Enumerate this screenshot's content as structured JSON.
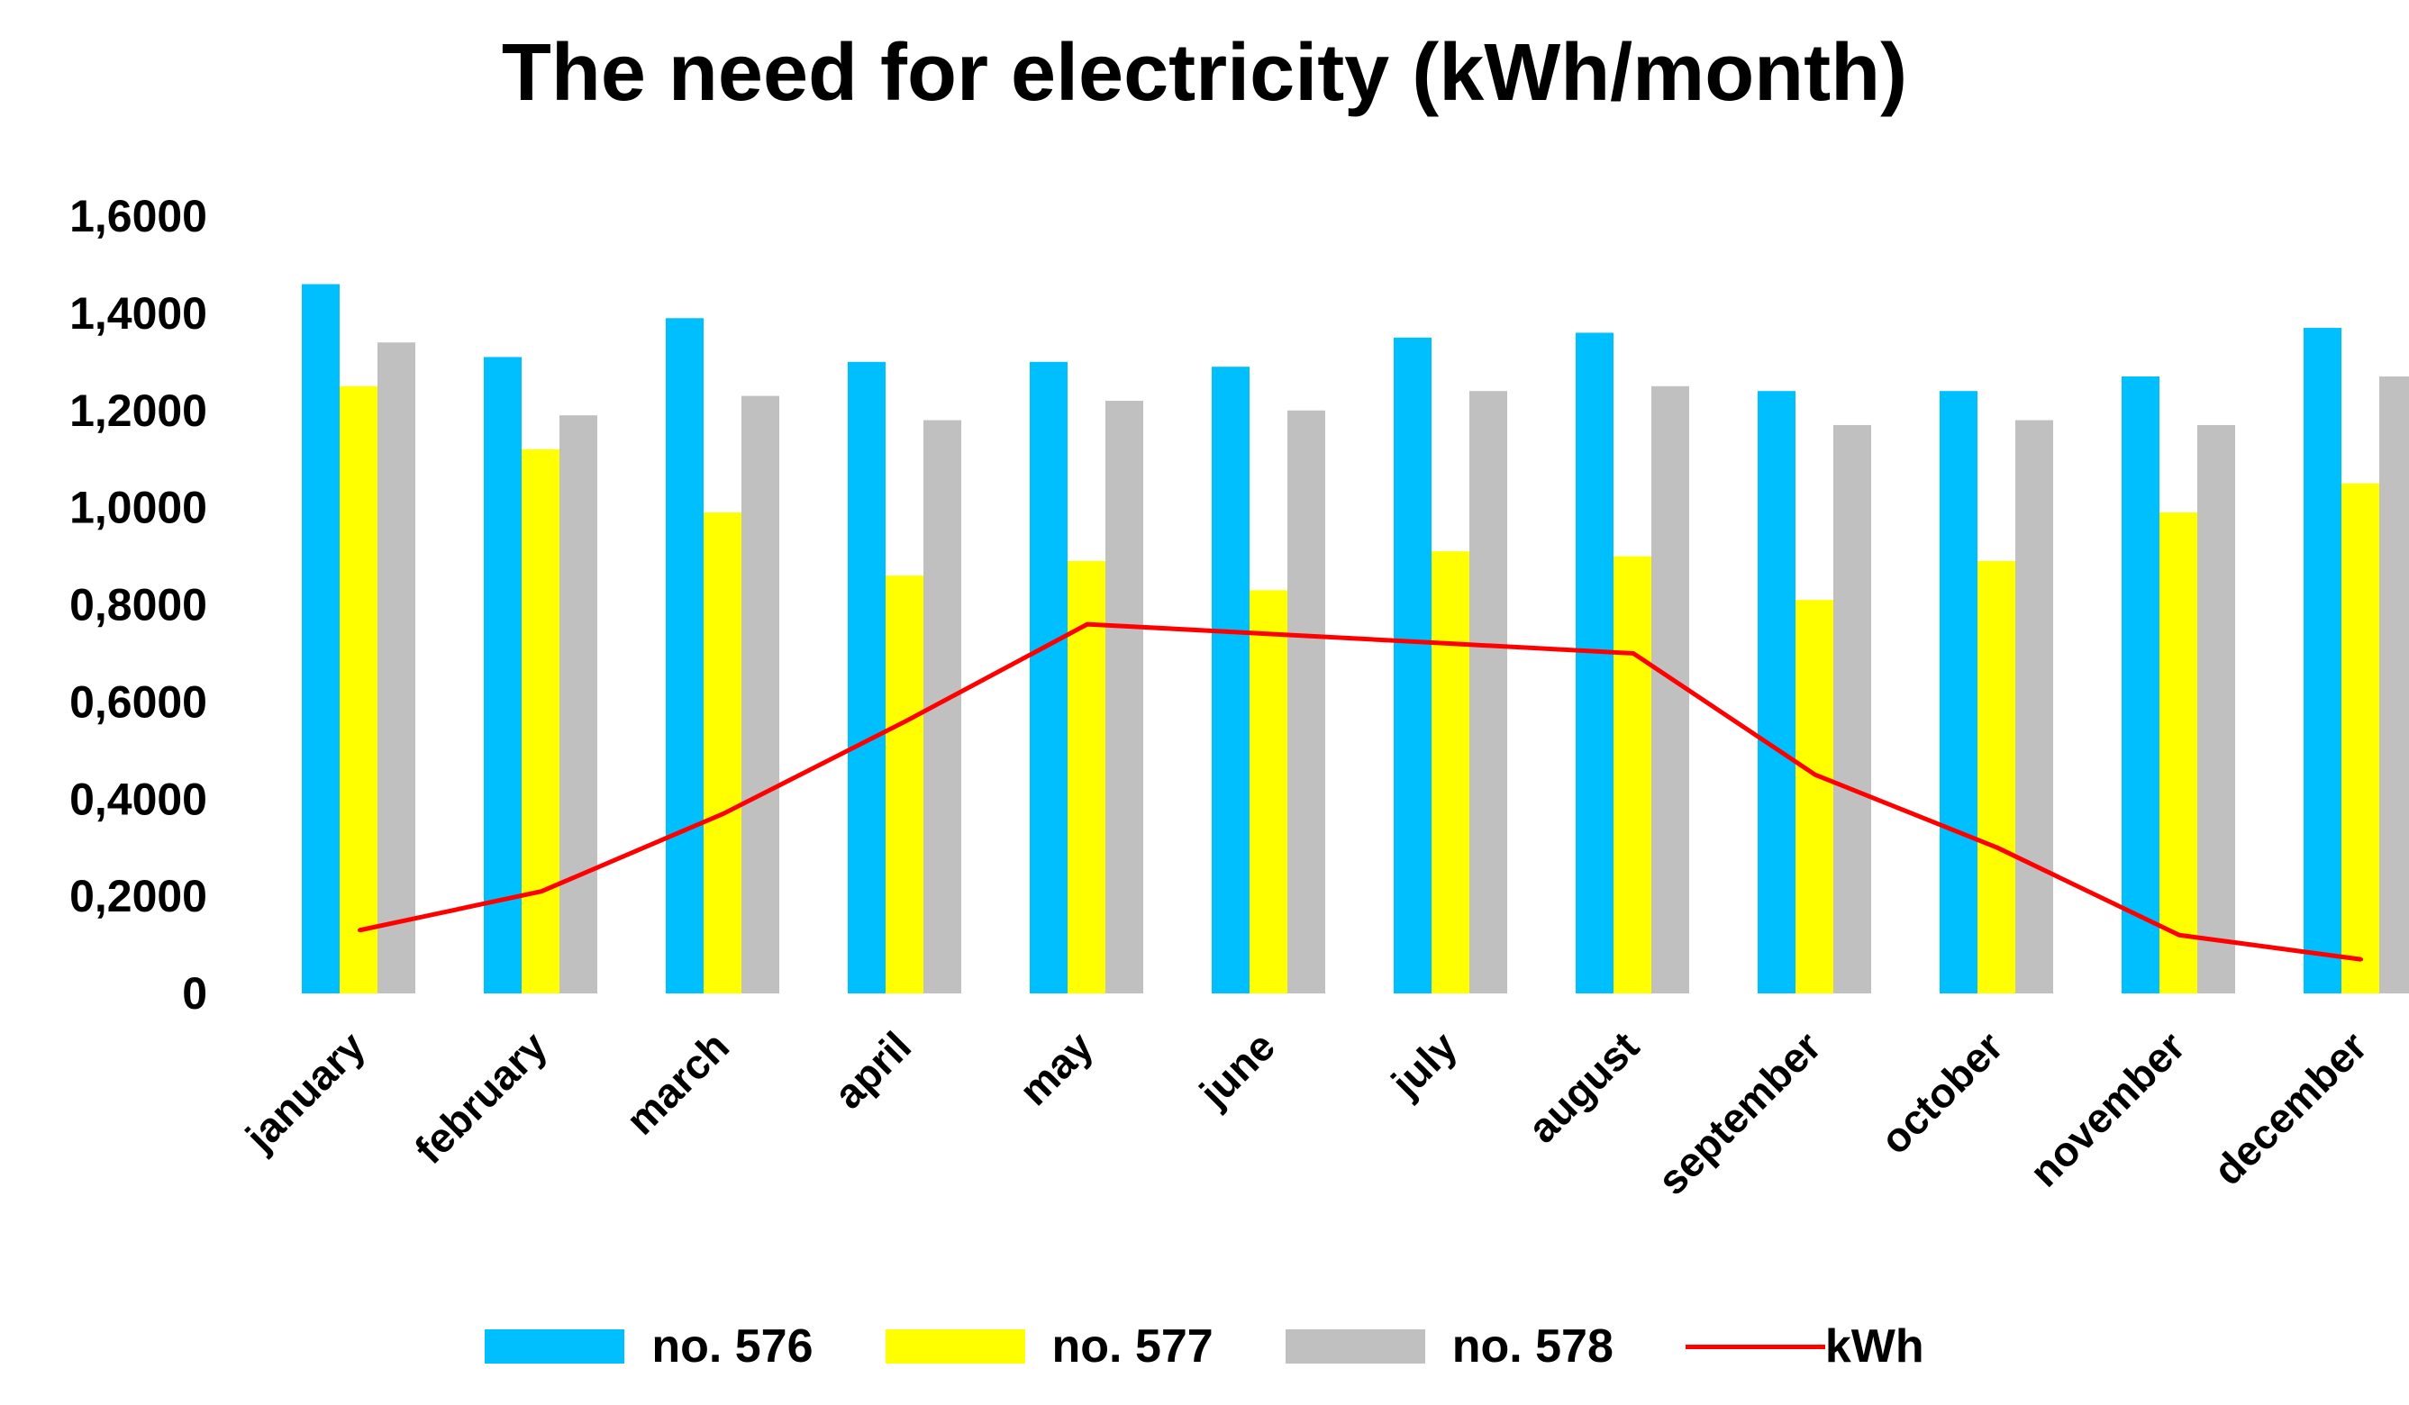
{
  "chart_data": {
    "type": "bar",
    "title": "The need for electricity (kWh/month)",
    "xlabel": "",
    "ylabel": "",
    "ylim": [
      0,
      1.6
    ],
    "yticks": [
      0,
      0.2,
      0.4,
      0.6,
      0.8,
      1.0,
      1.2,
      1.4,
      1.6
    ],
    "ytick_labels": [
      "0",
      "0,2000",
      "0,4000",
      "0,6000",
      "0,8000",
      "1,0000",
      "1,2000",
      "1,4000",
      "1,6000"
    ],
    "grid": false,
    "legend_position": "bottom",
    "categories": [
      "january",
      "february",
      "march",
      "april",
      "may",
      "june",
      "july",
      "august",
      "september",
      "october",
      "november",
      "december"
    ],
    "series": [
      {
        "name": "no. 576",
        "kind": "bar",
        "color": "#00BFFF",
        "values": [
          1.46,
          1.31,
          1.39,
          1.3,
          1.3,
          1.29,
          1.35,
          1.36,
          1.24,
          1.24,
          1.27,
          1.37
        ]
      },
      {
        "name": "no. 577",
        "kind": "bar",
        "color": "#FFFF00",
        "values": [
          1.25,
          1.12,
          0.99,
          0.86,
          0.89,
          0.83,
          0.91,
          0.9,
          0.81,
          0.89,
          0.99,
          1.05
        ]
      },
      {
        "name": "no. 578",
        "kind": "bar",
        "color": "#C0C0C0",
        "values": [
          1.34,
          1.19,
          1.23,
          1.18,
          1.22,
          1.2,
          1.24,
          1.25,
          1.17,
          1.18,
          1.17,
          1.27
        ]
      },
      {
        "name": "kWh",
        "kind": "line",
        "color": "#FF0000",
        "values": [
          0.13,
          0.21,
          0.37,
          0.56,
          0.76,
          0.74,
          0.72,
          0.7,
          0.45,
          0.3,
          0.12,
          0.07
        ]
      }
    ]
  }
}
